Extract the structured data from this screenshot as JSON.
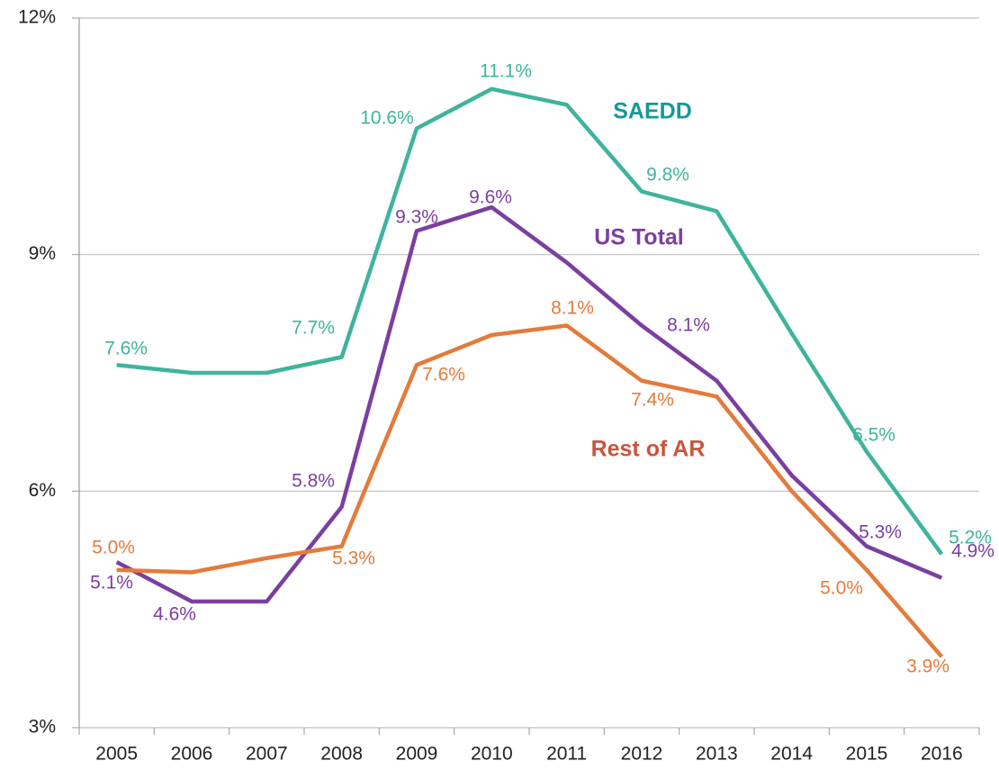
{
  "chart_data": {
    "type": "line",
    "categories": [
      "2005",
      "2006",
      "2007",
      "2008",
      "2009",
      "2010",
      "2011",
      "2012",
      "2013",
      "2014",
      "2015",
      "2016"
    ],
    "series": [
      {
        "name": "SAEDD",
        "color": "#3fb49c",
        "values": [
          7.6,
          7.5,
          7.5,
          7.7,
          10.6,
          11.1,
          10.9,
          9.8,
          9.55,
          8.0,
          6.5,
          5.2
        ],
        "value_labels": [
          "7.6%",
          null,
          null,
          "7.7%",
          "10.6%",
          "11.1%",
          null,
          "9.8%",
          null,
          null,
          "6.5%",
          "5.2%"
        ]
      },
      {
        "name": "US Total",
        "color": "#7b3fa0",
        "values": [
          5.1,
          4.6,
          4.6,
          5.8,
          9.3,
          9.6,
          8.9,
          8.1,
          7.4,
          6.2,
          5.3,
          4.9
        ],
        "value_labels": [
          "5.1%",
          "4.6%",
          null,
          "5.8%",
          "9.3%",
          "9.6%",
          null,
          "8.1%",
          null,
          null,
          "5.3%",
          "4.9%"
        ]
      },
      {
        "name": "Rest of AR",
        "color": "#e37b3c",
        "values": [
          5.0,
          4.97,
          5.15,
          5.3,
          7.6,
          7.98,
          8.1,
          7.4,
          7.2,
          6.0,
          5.0,
          3.9
        ],
        "value_labels": [
          "5.0%",
          null,
          null,
          "5.3%",
          "7.6%",
          null,
          "8.1%",
          "7.4%",
          null,
          null,
          "5.0%",
          "3.9%"
        ]
      }
    ],
    "ylim": [
      3,
      12
    ],
    "yticks": [
      {
        "value": 3,
        "label": "3%"
      },
      {
        "value": 6,
        "label": "6%"
      },
      {
        "value": 9,
        "label": "9%"
      },
      {
        "value": 12,
        "label": "12%"
      }
    ],
    "grid": true
  }
}
